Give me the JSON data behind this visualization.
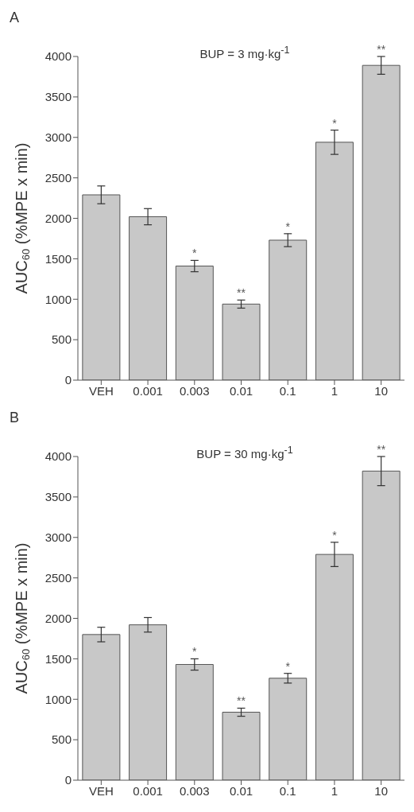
{
  "chart_data": [
    {
      "type": "bar",
      "title": "A",
      "subtitle": "BUP = 3 mg·kg$^{-1}$",
      "ylabel": "AUC$_{60}$ (%MPE x min)",
      "categories": [
        "VEH",
        "0.001",
        "0.003",
        "0.01",
        "0.1",
        "1",
        "10"
      ],
      "values": [
        2290,
        2020,
        1410,
        940,
        1730,
        2940,
        3890
      ],
      "errors": [
        110,
        100,
        70,
        50,
        80,
        150,
        110
      ],
      "color": "#c8c8c8",
      "ylim": [
        0,
        4000
      ],
      "yticks": [
        0,
        500,
        1000,
        1500,
        2000,
        2500,
        3000,
        3500,
        4000
      ],
      "annotations": [
        {
          "text": "*",
          "x": "0.003",
          "y": 1480
        },
        {
          "text": "**",
          "x": "0.01",
          "y": 990
        },
        {
          "text": "*",
          "x": "0.1",
          "y": 1810
        },
        {
          "text": "*",
          "x": "1",
          "y": 3090
        },
        {
          "text": "**",
          "x": "10",
          "y": 4000
        }
      ]
    },
    {
      "type": "bar",
      "title": "B",
      "subtitle": "BUP = 30 mg·kg$^{-1}$",
      "ylabel": "AUC$_{60}$ (%MPE x min)",
      "categories": [
        "VEH",
        "0.001",
        "0.003",
        "0.01",
        "0.1",
        "1",
        "10"
      ],
      "values": [
        1800,
        1920,
        1430,
        840,
        1260,
        2790,
        3820
      ],
      "errors": [
        90,
        90,
        70,
        50,
        60,
        150,
        180
      ],
      "color": "#c8c8c8",
      "ylim": [
        0,
        4000
      ],
      "yticks": [
        0,
        500,
        1000,
        1500,
        2000,
        2500,
        3000,
        3500,
        4000
      ],
      "annotations": [
        {
          "text": "*",
          "x": "0.003",
          "y": 1500
        },
        {
          "text": "**",
          "x": "0.01",
          "y": 890
        },
        {
          "text": "*",
          "x": "0.1",
          "y": 1320
        },
        {
          "text": "*",
          "x": "1",
          "y": 2940
        },
        {
          "text": "**",
          "x": "10",
          "y": 4000
        }
      ]
    }
  ]
}
